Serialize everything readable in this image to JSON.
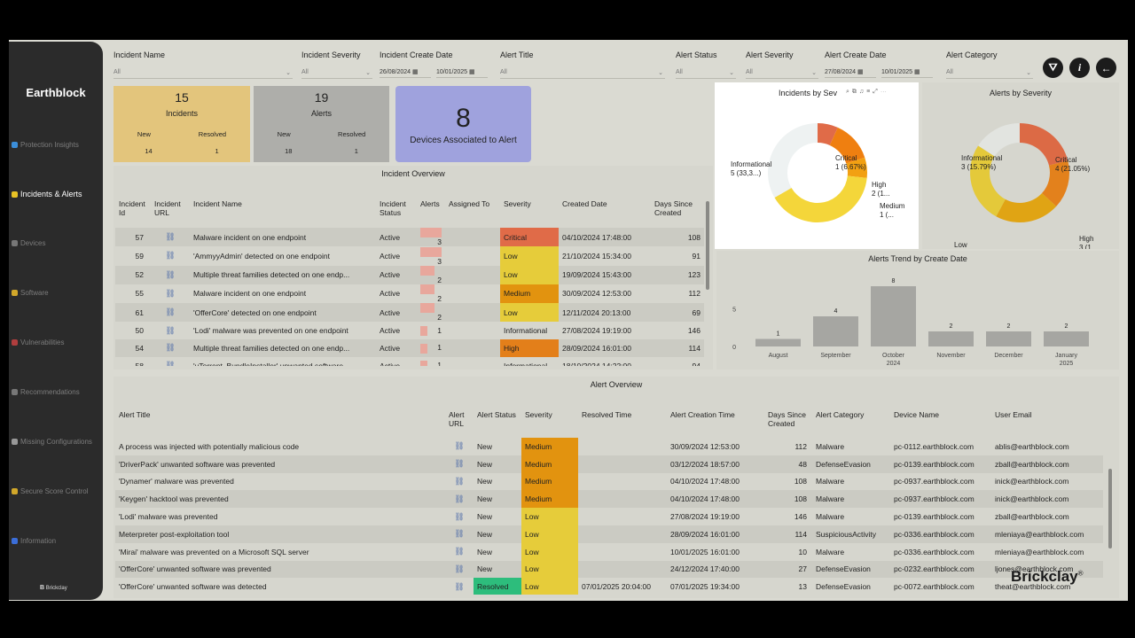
{
  "sidebar": {
    "brand": "Earthblock",
    "items": [
      {
        "label": "Protection Insights",
        "icon": "shield-icon",
        "color": "#3b8ed9"
      },
      {
        "label": "Incidents & Alerts",
        "icon": "warning-icon",
        "color": "#e9c325",
        "active": true
      },
      {
        "label": "Devices",
        "icon": "device-icon",
        "color": "#777"
      },
      {
        "label": "Software",
        "icon": "folder-icon",
        "color": "#d1a72a"
      },
      {
        "label": "Vulnerabilities",
        "icon": "bug-icon",
        "color": "#b03e3e"
      },
      {
        "label": "Recommendations",
        "icon": "monitor-icon",
        "color": "#777"
      },
      {
        "label": "Missing Configurations",
        "icon": "tools-icon",
        "color": "#999"
      },
      {
        "label": "Secure Score Control",
        "icon": "lock-icon",
        "color": "#d1a72a"
      },
      {
        "label": "Information",
        "icon": "info-icon",
        "color": "#3b6ed9"
      }
    ],
    "footer": "Brickclay"
  },
  "filters": {
    "incident_name": {
      "label": "Incident Name",
      "value": "All"
    },
    "incident_severity": {
      "label": "Incident Severity",
      "value": "All"
    },
    "incident_create_date": {
      "label": "Incident Create Date",
      "from": "26/08/2024",
      "to": "10/01/2025"
    },
    "alert_title": {
      "label": "Alert Title",
      "value": "All"
    },
    "alert_status": {
      "label": "Alert Status",
      "value": "All"
    },
    "alert_severity": {
      "label": "Alert Severity",
      "value": "All"
    },
    "alert_create_date": {
      "label": "Alert Create Date",
      "from": "27/08/2024",
      "to": "10/01/2025"
    },
    "alert_category": {
      "label": "Alert Category",
      "value": "All"
    }
  },
  "kpis": {
    "incidents": {
      "value": "15",
      "label": "Incidents",
      "new_label": "New",
      "resolved_label": "Resolved",
      "new": "14",
      "resolved": "1"
    },
    "alerts": {
      "value": "19",
      "label": "Alerts",
      "new_label": "New",
      "resolved_label": "Resolved",
      "new": "18",
      "resolved": "1"
    },
    "devices": {
      "value": "8",
      "label": "Devices Associated to Alert"
    }
  },
  "incident_overview": {
    "title": "Incident Overview",
    "columns": [
      "Incident Id",
      "Incident URL",
      "Incident Name",
      "Incident Status",
      "Alerts",
      "Assigned To",
      "Severity",
      "Created Date",
      "Days Since Created"
    ],
    "rows": [
      {
        "id": "57",
        "name": "Malware incident on one endpoint",
        "status": "Active",
        "alerts": "3",
        "severity": "Critical",
        "created": "04/10/2024 17:48:00",
        "days": "108"
      },
      {
        "id": "59",
        "name": "'AmmyyAdmin' detected on one endpoint",
        "status": "Active",
        "alerts": "3",
        "severity": "Low",
        "created": "21/10/2024 15:34:00",
        "days": "91"
      },
      {
        "id": "52",
        "name": "Multiple threat families detected on one endp...",
        "status": "Active",
        "alerts": "2",
        "severity": "Low",
        "created": "19/09/2024 15:43:00",
        "days": "123"
      },
      {
        "id": "55",
        "name": "Malware incident on one endpoint",
        "status": "Active",
        "alerts": "2",
        "severity": "Medium",
        "created": "30/09/2024 12:53:00",
        "days": "112"
      },
      {
        "id": "61",
        "name": "'OfferCore' detected on one endpoint",
        "status": "Active",
        "alerts": "2",
        "severity": "Low",
        "created": "12/11/2024 20:13:00",
        "days": "69"
      },
      {
        "id": "50",
        "name": "'Lodi' malware was prevented on one endpoint",
        "status": "Active",
        "alerts": "1",
        "severity": "Informational",
        "created": "27/08/2024 19:19:00",
        "days": "146"
      },
      {
        "id": "54",
        "name": "Multiple threat families detected on one endp...",
        "status": "Active",
        "alerts": "1",
        "severity": "High",
        "created": "28/09/2024 16:01:00",
        "days": "114"
      },
      {
        "id": "58",
        "name": "'uTorrent_BundleInstaller' unwanted software ...",
        "status": "Active",
        "alerts": "1",
        "severity": "Informational",
        "created": "18/10/2024 14:22:00",
        "days": "94"
      }
    ]
  },
  "alert_overview": {
    "title": "Alert Overview",
    "columns": [
      "Alert Title",
      "Alert URL",
      "Alert Status",
      "Severity",
      "Resolved Time",
      "Alert Creation Time",
      "Days Since Created",
      "Alert Category",
      "Device Name",
      "User Email"
    ],
    "rows": [
      {
        "title": "A process was injected with potentially malicious code",
        "status": "New",
        "severity": "Medium",
        "resolved": "",
        "created": "30/09/2024 12:53:00",
        "days": "112",
        "category": "Malware",
        "device": "pc-0112.earthblock.com",
        "email": "ablis@earthblock.com"
      },
      {
        "title": "'DriverPack' unwanted software was prevented",
        "status": "New",
        "severity": "Medium",
        "resolved": "",
        "created": "03/12/2024 18:57:00",
        "days": "48",
        "category": "DefenseEvasion",
        "device": "pc-0139.earthblock.com",
        "email": "zball@earthblock.com"
      },
      {
        "title": "'Dynamer' malware was prevented",
        "status": "New",
        "severity": "Medium",
        "resolved": "",
        "created": "04/10/2024 17:48:00",
        "days": "108",
        "category": "Malware",
        "device": "pc-0937.earthblock.com",
        "email": "inick@earthblock.com"
      },
      {
        "title": "'Keygen' hacktool was prevented",
        "status": "New",
        "severity": "Medium",
        "resolved": "",
        "created": "04/10/2024 17:48:00",
        "days": "108",
        "category": "Malware",
        "device": "pc-0937.earthblock.com",
        "email": "inick@earthblock.com"
      },
      {
        "title": "'Lodi' malware was prevented",
        "status": "New",
        "severity": "Low",
        "resolved": "",
        "created": "27/08/2024 19:19:00",
        "days": "146",
        "category": "Malware",
        "device": "pc-0139.earthblock.com",
        "email": "zball@earthblock.com"
      },
      {
        "title": "Meterpreter post-exploitation tool",
        "status": "New",
        "severity": "Low",
        "resolved": "",
        "created": "28/09/2024 16:01:00",
        "days": "114",
        "category": "SuspiciousActivity",
        "device": "pc-0336.earthblock.com",
        "email": "mleniaya@earthblock.com"
      },
      {
        "title": "'Mirai' malware was prevented on a Microsoft SQL server",
        "status": "New",
        "severity": "Low",
        "resolved": "",
        "created": "10/01/2025 16:01:00",
        "days": "10",
        "category": "Malware",
        "device": "pc-0336.earthblock.com",
        "email": "mleniaya@earthblock.com"
      },
      {
        "title": "'OfferCore' unwanted software was prevented",
        "status": "New",
        "severity": "Low",
        "resolved": "",
        "created": "24/12/2024 17:40:00",
        "days": "27",
        "category": "DefenseEvasion",
        "device": "pc-0232.earthblock.com",
        "email": "ljones@earthblock.com"
      },
      {
        "title": "'OfferCore' unwanted software was detected",
        "status": "Resolved",
        "severity": "Low",
        "resolved": "07/01/2025 20:04:00",
        "created": "07/01/2025 19:34:00",
        "days": "13",
        "category": "DefenseEvasion",
        "device": "pc-0072.earthblock.com",
        "email": "theat@earthblock.com"
      }
    ]
  },
  "severity_colors": {
    "Critical": "#e06b48",
    "High": "#e37f1a",
    "Medium": "#e2930f",
    "Low": "#e6cc3a",
    "Informational": "#d6d6ce",
    "Resolved": "#2dbd7c"
  },
  "chart_data": [
    {
      "type": "pie",
      "title": "Incidents by Sev",
      "categories": [
        "Critical",
        "High",
        "Medium",
        "Low",
        "Informational"
      ],
      "values": [
        1,
        2,
        1,
        6,
        5
      ],
      "labels": [
        "Critical\n1 (6.67%)",
        "High\n2 (1...",
        "Medium\n1 (...",
        "Low 6 (40%)",
        "Informational\n5 (33,3...)"
      ],
      "colors": [
        "#e06b48",
        "#ef7f10",
        "#f2a012",
        "#f4d63a",
        "#eef2f2"
      ]
    },
    {
      "type": "pie",
      "title": "Alerts by Severity",
      "categories": [
        "Critical",
        "High",
        "Medium",
        "Low",
        "Informational"
      ],
      "values": [
        4,
        3,
        4,
        5,
        3
      ],
      "labels": [
        "Critical\n4 (21.05%)",
        "High\n3 (1...",
        "Medium\n4 (21.05%)",
        "Low\n5 (26...",
        "Informational\n3 (15.79%)"
      ],
      "colors": [
        "#dc6a45",
        "#e3811c",
        "#e0a414",
        "#e4c93a",
        "#e2e4e0"
      ]
    },
    {
      "type": "bar",
      "title": "Alerts Trend by Create Date",
      "categories": [
        "August",
        "September",
        "October\n2024",
        "November",
        "December",
        "January\n2025"
      ],
      "values": [
        1,
        4,
        8,
        2,
        2,
        2
      ],
      "yticks": [
        "5",
        "0"
      ],
      "ylim": [
        0,
        8
      ],
      "color": "#a6a6a2"
    }
  ],
  "brand_logo": "Brickclay"
}
